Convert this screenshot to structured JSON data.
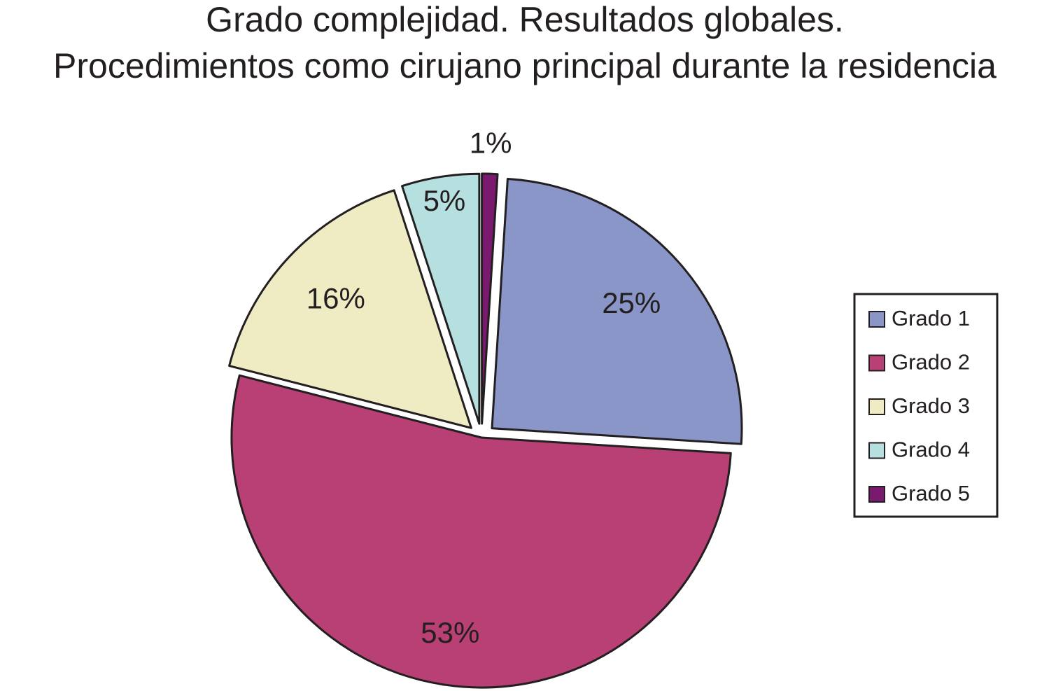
{
  "chart_data": {
    "type": "pie",
    "title": "Grado complejidad. Resultados globales.",
    "subtitle": "Procedimientos como cirujano principal durante la residencia",
    "categories": [
      "Grado 1",
      "Grado 2",
      "Grado 3",
      "Grado 4",
      "Grado 5"
    ],
    "values": [
      25,
      53,
      16,
      5,
      1
    ],
    "value_labels": [
      "25%",
      "53%",
      "16%",
      "5%",
      "1%"
    ],
    "colors": [
      "#8a95c8",
      "#b84074",
      "#efecc4",
      "#b5e0df",
      "#7a1a6e"
    ],
    "legend": "right"
  }
}
